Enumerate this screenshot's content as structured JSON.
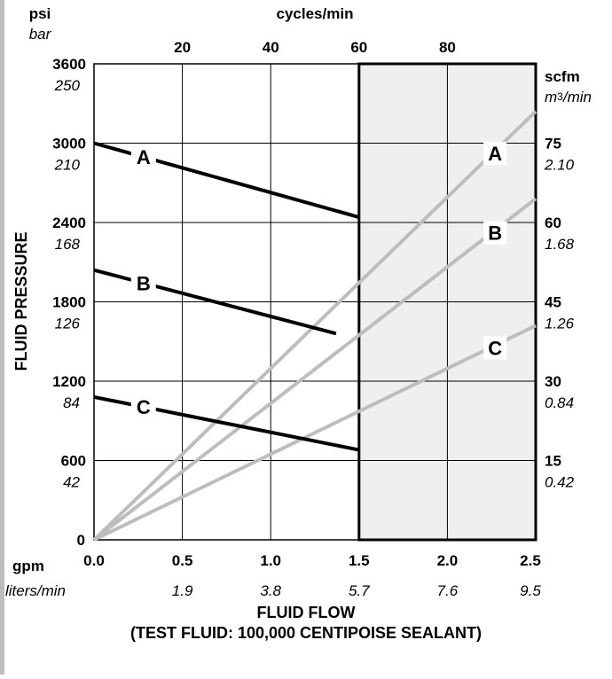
{
  "chart_data": {
    "type": "line",
    "axes": {
      "x_bottom_primary": {
        "unit": "gpm",
        "range": [
          0.0,
          2.5
        ],
        "ticks": [
          "0.0",
          "0.5",
          "1.0",
          "1.5",
          "2.0",
          "2.5"
        ]
      },
      "x_bottom_secondary": {
        "unit": "liters/min",
        "ticks": [
          "1.9",
          "3.8",
          "5.7",
          "7.6",
          "9.5"
        ]
      },
      "x_top": {
        "unit": "cycles/min",
        "ticks": [
          "20",
          "40",
          "60",
          "80"
        ]
      },
      "y_left_primary": {
        "unit": "psi",
        "range": [
          0,
          3600
        ],
        "ticks": [
          "0",
          "600",
          "1200",
          "1800",
          "2400",
          "3000",
          "3600"
        ]
      },
      "y_left_secondary": {
        "unit": "bar",
        "ticks": [
          "42",
          "84",
          "126",
          "168",
          "210",
          "250"
        ]
      },
      "y_right_primary": {
        "unit": "scfm",
        "ticks": [
          "15",
          "30",
          "45",
          "60",
          "75"
        ]
      },
      "y_right_secondary": {
        "unit_prefix": "m",
        "unit_sup": "3",
        "unit_suffix": "/min",
        "ticks": [
          "0.42",
          "0.84",
          "1.26",
          "1.68",
          "2.10"
        ]
      }
    },
    "ylabel": "FLUID PRESSURE",
    "xlabel": "FLUID FLOW",
    "xlabel_note": "(TEST FLUID: 100,000 CENTIPOISE SEALANT)",
    "shaded_region": {
      "x_from": 1.5,
      "x_to": 2.5
    },
    "grid": true,
    "pressure_series": [
      {
        "label": "A",
        "points": [
          [
            0.0,
            3000
          ],
          [
            1.5,
            2440
          ]
        ]
      },
      {
        "label": "B",
        "points": [
          [
            0.0,
            2040
          ],
          [
            1.37,
            1560
          ]
        ]
      },
      {
        "label": "C",
        "points": [
          [
            0.0,
            1080
          ],
          [
            1.5,
            680
          ]
        ]
      }
    ],
    "air_series": [
      {
        "label": "A",
        "points": [
          [
            0.0,
            0
          ],
          [
            2.5,
            81
          ]
        ]
      },
      {
        "label": "B",
        "points": [
          [
            0.0,
            0
          ],
          [
            2.5,
            64.5
          ]
        ]
      },
      {
        "label": "C",
        "points": [
          [
            0.0,
            0
          ],
          [
            2.5,
            40.5
          ]
        ]
      }
    ],
    "colors": {
      "pressure": "#000000",
      "air": "#bdbdbd",
      "shade": "#efefef"
    }
  }
}
